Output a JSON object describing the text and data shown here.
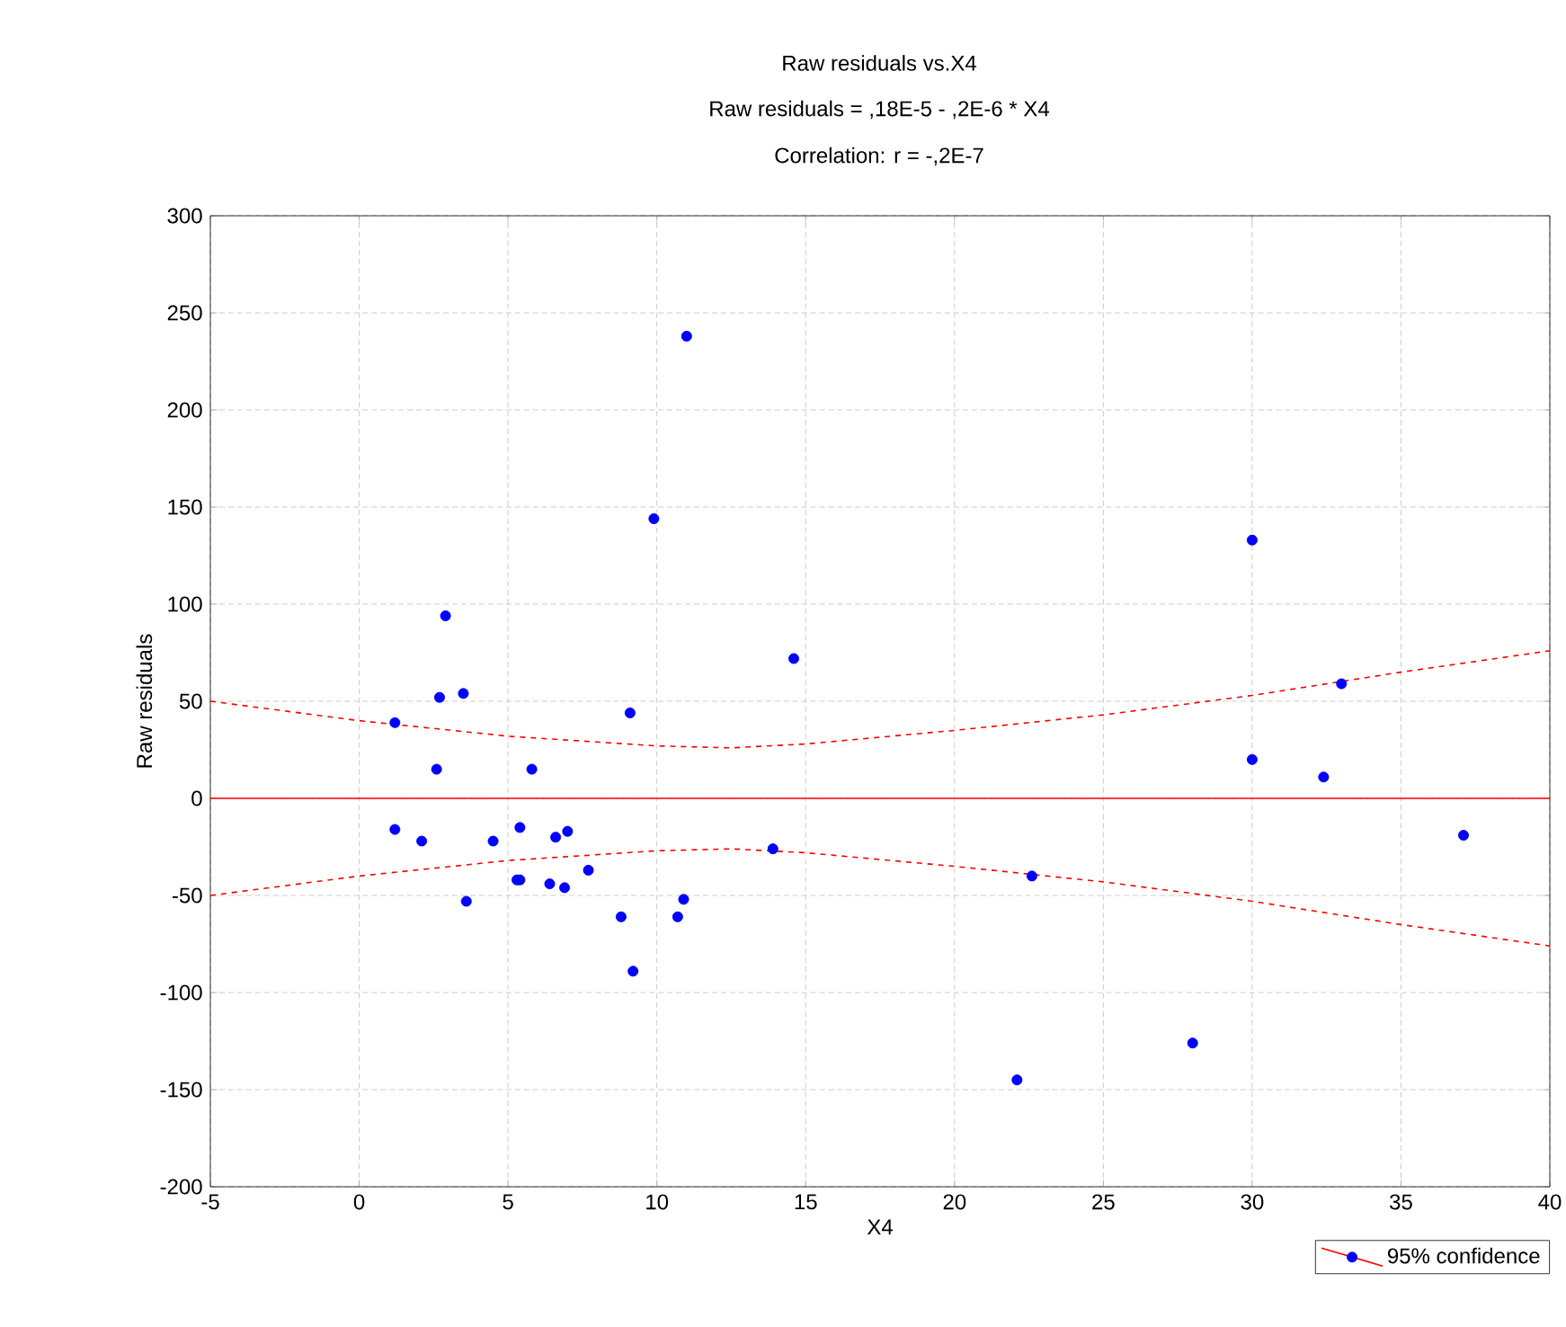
{
  "chart_data": {
    "type": "scatter",
    "title": "Raw  residuals vs.X4",
    "subtitle": "Raw  residuals = ,18E-5 - ,2E-6  *  X4",
    "annotations": [
      "Correlation: r = -,2E-7"
    ],
    "xlabel": "X4",
    "ylabel": "Raw residuals",
    "xlim": [
      -5,
      40
    ],
    "xticks": [
      -5,
      0,
      5,
      10,
      15,
      20,
      25,
      30,
      35,
      40
    ],
    "ylim": [
      -200,
      300
    ],
    "yticks": [
      -200,
      -150,
      -100,
      -50,
      0,
      50,
      100,
      150,
      200,
      250,
      300
    ],
    "grid": true,
    "legend": "bottom right",
    "series": [
      {
        "name": "95% confidence",
        "marker": "circle",
        "color": "#0000ff",
        "x": [
          1.2,
          1.2,
          2.1,
          2.6,
          2.7,
          2.9,
          3.5,
          3.6,
          4.5,
          5.3,
          5.4,
          5.4,
          5.8,
          6.4,
          6.6,
          6.9,
          7.0,
          7.7,
          8.8,
          9.1,
          9.2,
          9.9,
          10.7,
          10.9,
          11.0,
          13.9,
          14.6,
          22.1,
          22.6,
          28.0,
          30.0,
          30.0,
          32.4,
          33.0,
          37.1
        ],
        "values": [
          39,
          -16,
          -22,
          15,
          52,
          94,
          54,
          -53,
          -22,
          -42,
          -42,
          -15,
          15,
          -44,
          -20,
          -46,
          -17,
          -37,
          -61,
          44,
          -89,
          144,
          -61,
          -52,
          238,
          -26,
          72,
          -145,
          -40,
          -126,
          133,
          20,
          11,
          59,
          -19
        ]
      },
      {
        "type": "line",
        "line_style": "solid",
        "color": "#ff0000",
        "x": [
          -5,
          40
        ],
        "values": [
          0,
          0
        ]
      },
      {
        "type": "line",
        "line_style": "dashed",
        "color": "#ff0000",
        "x": [
          -5,
          0,
          5,
          10,
          12.5,
          15,
          20,
          25,
          30,
          35,
          40
        ],
        "values": [
          50,
          40,
          32,
          27,
          26,
          28,
          35,
          43,
          53,
          65,
          76
        ]
      },
      {
        "type": "line",
        "line_style": "dashed",
        "color": "#ff0000",
        "x": [
          -5,
          0,
          5,
          10,
          12.5,
          15,
          20,
          25,
          30,
          35,
          40
        ],
        "values": [
          -50,
          -40,
          -32,
          -27,
          -26,
          -28,
          -35,
          -43,
          -53,
          -65,
          -76
        ]
      }
    ]
  }
}
